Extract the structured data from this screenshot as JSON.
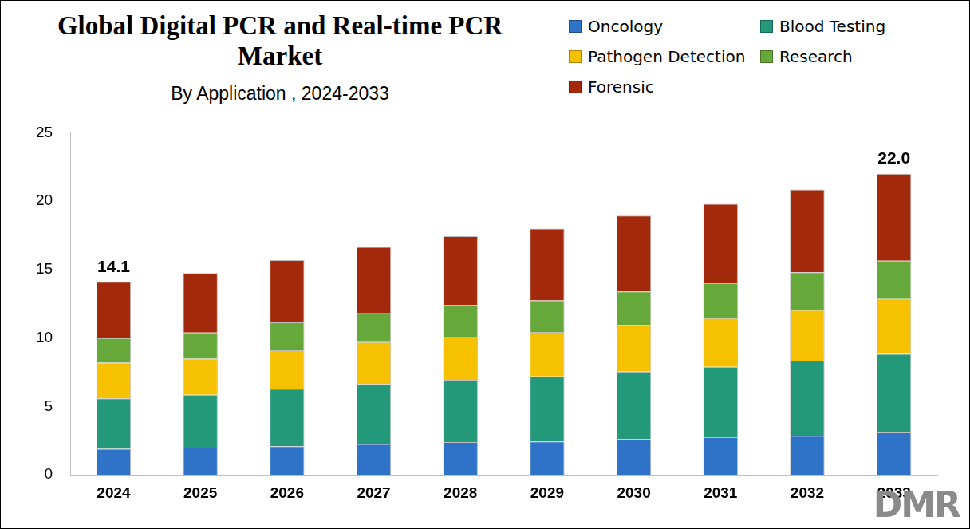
{
  "chart_data": {
    "type": "bar",
    "title": "Global Digital PCR and Real-time PCR Market",
    "subtitle": "By Application , 2024-2033",
    "logo": "DMR",
    "categories": [
      "2024",
      "2025",
      "2026",
      "2027",
      "2028",
      "2029",
      "2030",
      "2031",
      "2032",
      "2033"
    ],
    "series": [
      {
        "name": "Oncology",
        "color": "#2e73c8",
        "values": [
          1.9,
          2.0,
          2.1,
          2.25,
          2.4,
          2.45,
          2.6,
          2.75,
          2.85,
          3.1
        ]
      },
      {
        "name": "Blood Testing",
        "color": "#23997a",
        "values": [
          3.7,
          3.85,
          4.2,
          4.4,
          4.55,
          4.75,
          4.95,
          5.15,
          5.5,
          5.75
        ]
      },
      {
        "name": "Pathogen Detection",
        "color": "#f6c100",
        "values": [
          2.6,
          2.65,
          2.8,
          3.05,
          3.1,
          3.25,
          3.4,
          3.55,
          3.7,
          4.0
        ]
      },
      {
        "name": "Research",
        "color": "#67a83a",
        "values": [
          1.8,
          1.9,
          2.05,
          2.1,
          2.35,
          2.3,
          2.45,
          2.55,
          2.75,
          2.8
        ]
      },
      {
        "name": "Forensic",
        "color": "#a2290c",
        "values": [
          4.1,
          4.35,
          4.55,
          4.85,
          5.05,
          5.25,
          5.55,
          5.8,
          6.05,
          6.35
        ]
      }
    ],
    "annotations": [
      {
        "category": "2024",
        "value": 14.1,
        "label": "14.1"
      },
      {
        "category": "2033",
        "value": 22.0,
        "label": "22.0"
      }
    ],
    "stacked": true,
    "legend": "top-right",
    "grid": false,
    "ylim": [
      0,
      25
    ],
    "yticks": [
      0,
      5,
      10,
      15,
      20,
      25
    ]
  }
}
